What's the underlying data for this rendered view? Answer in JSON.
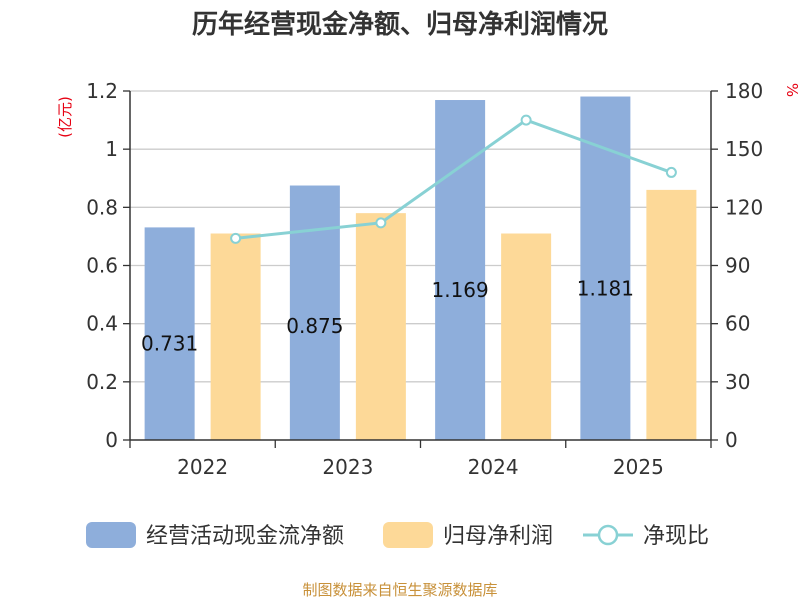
{
  "chart_data": {
    "type": "bar",
    "title": "历年经营现金净额、归母净利润情况",
    "categories": [
      "2022",
      "2023",
      "2024",
      "2025"
    ],
    "series": [
      {
        "name": "经营活动现金流净额",
        "kind": "bar",
        "axis": "left",
        "color": "#8eaedb",
        "values": [
          0.731,
          0.875,
          1.169,
          1.181
        ],
        "labels": [
          "0.731",
          "0.875",
          "1.169",
          "1.181"
        ]
      },
      {
        "name": "归母净利润",
        "kind": "bar",
        "axis": "left",
        "color": "#fdd998",
        "values": [
          0.71,
          0.78,
          0.71,
          0.86
        ]
      },
      {
        "name": "净现比",
        "kind": "line",
        "axis": "right",
        "color": "#88d1d4",
        "values": [
          104,
          112,
          165,
          138
        ]
      }
    ],
    "y_left": {
      "unit": "(亿元)",
      "ylim": [
        0,
        1.2
      ],
      "ticks": [
        0,
        0.2,
        0.4,
        0.6,
        0.8,
        1.0,
        1.2
      ],
      "tick_labels": [
        "0",
        "0.2",
        "0.4",
        "0.6",
        "0.8",
        "1",
        "1.2"
      ]
    },
    "y_right": {
      "unit": "%",
      "ylim": [
        0,
        180
      ],
      "ticks": [
        0,
        30,
        60,
        90,
        120,
        150,
        180
      ],
      "tick_labels": [
        "0",
        "30",
        "60",
        "90",
        "120",
        "150",
        "180"
      ]
    },
    "grid": true,
    "legend_position": "bottom"
  },
  "source": "制图数据来自恒生聚源数据库"
}
